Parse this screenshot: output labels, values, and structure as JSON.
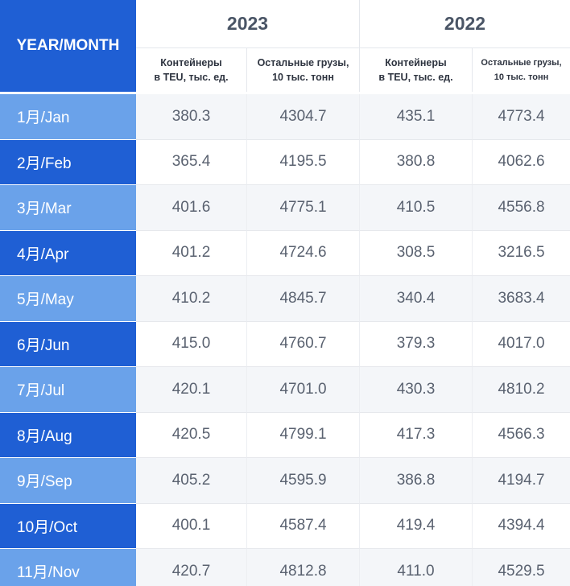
{
  "header": {
    "corner_label": "YEAR/MONTH",
    "years": [
      "2023",
      "2022"
    ],
    "sub_headers": [
      "Контейнеры\nв TEU, тыс. ед.",
      "Остальные грузы,\n10 тыс. тонн",
      "Контейнеры\nв TEU, тыс. ед.",
      "Остальные грузы,\n10 тыс. тонн"
    ]
  },
  "rows": [
    {
      "month": "1月/Jan",
      "c2023": "380.3",
      "o2023": "4304.7",
      "c2022": "435.1",
      "o2022": "4773.4"
    },
    {
      "month": "2月/Feb",
      "c2023": "365.4",
      "o2023": "4195.5",
      "c2022": "380.8",
      "o2022": "4062.6"
    },
    {
      "month": "3月/Mar",
      "c2023": "401.6",
      "o2023": "4775.1",
      "c2022": "410.5",
      "o2022": "4556.8"
    },
    {
      "month": "4月/Apr",
      "c2023": "401.2",
      "o2023": "4724.6",
      "c2022": "308.5",
      "o2022": "3216.5"
    },
    {
      "month": "5月/May",
      "c2023": "410.2",
      "o2023": "4845.7",
      "c2022": "340.4",
      "o2022": "3683.4"
    },
    {
      "month": "6月/Jun",
      "c2023": "415.0",
      "o2023": "4760.7",
      "c2022": "379.3",
      "o2022": "4017.0"
    },
    {
      "month": "7月/Jul",
      "c2023": "420.1",
      "o2023": "4701.0",
      "c2022": "430.3",
      "o2022": "4810.2"
    },
    {
      "month": "8月/Aug",
      "c2023": "420.5",
      "o2023": "4799.1",
      "c2022": "417.3",
      "o2022": "4566.3"
    },
    {
      "month": "9月/Sep",
      "c2023": "405.2",
      "o2023": "4595.9",
      "c2022": "386.8",
      "o2022": "4194.7"
    },
    {
      "month": "10月/Oct",
      "c2023": "400.1",
      "o2023": "4587.4",
      "c2022": "419.4",
      "o2022": "4394.4"
    },
    {
      "month": "11月/Nov",
      "c2023": "420.7",
      "o2023": "4812.8",
      "c2022": "411.0",
      "o2022": "4529.5"
    }
  ],
  "colors": {
    "header_blue": "#1f5fd4",
    "row_light_blue": "#6aa2ea",
    "row_dark_blue": "#1f5fd4",
    "value_text": "#5a6270"
  }
}
